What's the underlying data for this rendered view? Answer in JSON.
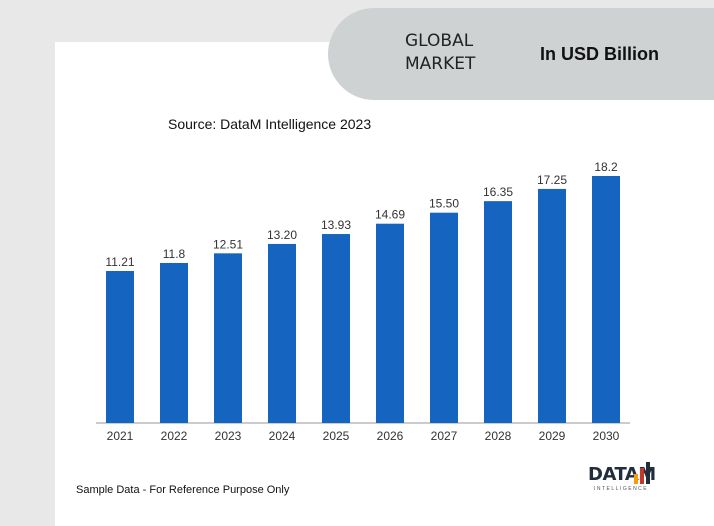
{
  "header": {
    "global_market": "GLOBAL MARKET",
    "units": "In USD Billion"
  },
  "source": "Source: DataM Intelligence 2023",
  "footer_note": "Sample Data - For Reference Purpose Only",
  "logo": {
    "word": "DATAM",
    "sub": "INTELLIGENCE"
  },
  "colors": {
    "bar": "#1565c0",
    "header_bg": "#cfd2d3",
    "frame": "#e8e8e8"
  },
  "chart_data": {
    "type": "bar",
    "categories": [
      "2021",
      "2022",
      "2023",
      "2024",
      "2025",
      "2026",
      "2027",
      "2028",
      "2029",
      "2030"
    ],
    "values": [
      11.21,
      11.8,
      12.51,
      13.2,
      13.93,
      14.69,
      15.5,
      16.35,
      17.25,
      18.2
    ],
    "value_labels": [
      "11.21",
      "11.8",
      "12.51",
      "13.20",
      "13.93",
      "14.69",
      "15.50",
      "16.35",
      "17.25",
      "18.2"
    ],
    "ylim": [
      0,
      18.5
    ],
    "grid": false,
    "legend": "none"
  }
}
